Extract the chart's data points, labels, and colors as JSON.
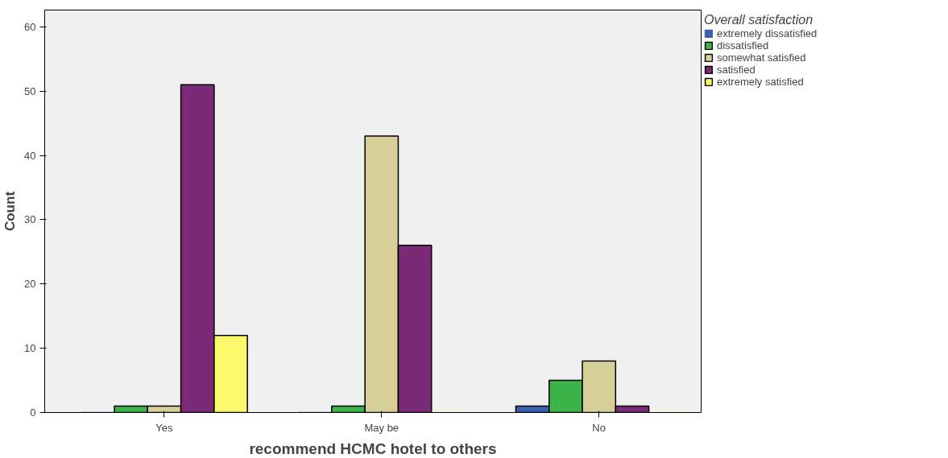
{
  "chart_data": {
    "type": "bar",
    "xlabel": "recommend HCMC hotel to others",
    "ylabel": "Count",
    "legend_title": "Overall satisfaction",
    "categories": [
      "Yes",
      "May be",
      "No"
    ],
    "series": [
      {
        "name": "extremely dissatisfied",
        "color": "#3a5fb0",
        "values": [
          0,
          0,
          1
        ]
      },
      {
        "name": "dissatisfied",
        "color": "#3cb44a",
        "values": [
          1,
          1,
          5
        ]
      },
      {
        "name": "somewhat satisfied",
        "color": "#d6cf98",
        "values": [
          1,
          43,
          8
        ]
      },
      {
        "name": "satisfied",
        "color": "#7b2a78",
        "values": [
          51,
          26,
          1
        ]
      },
      {
        "name": "extremely satisfied",
        "color": "#fcf86c",
        "values": [
          12,
          0,
          0
        ]
      }
    ],
    "ylim": [
      0,
      62.6
    ],
    "yticks": [
      0,
      10,
      20,
      30,
      40,
      50,
      60
    ],
    "grid": false,
    "legend": "top right"
  }
}
